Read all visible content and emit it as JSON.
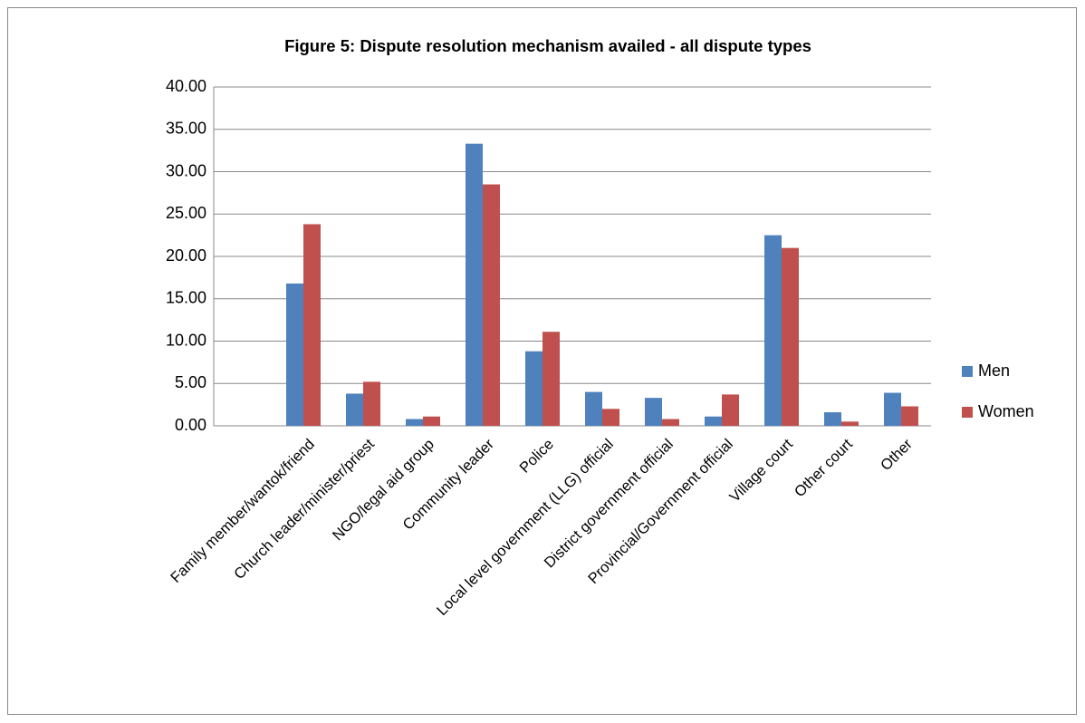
{
  "chart_data": {
    "type": "bar",
    "title": "Figure 5: Dispute resolution mechanism availed - all dispute types",
    "categories": [
      null,
      "Family member/wantok/friend",
      "Church leader/minister/priest",
      "NGO/legal aid group",
      "Community leader",
      "Police",
      "Local level government (LLG) official",
      "District government official",
      "Provincial/Government official",
      "Village court",
      "Other court",
      "Other"
    ],
    "series": [
      {
        "name": "Men",
        "color": "#4f81bd",
        "values": [
          null,
          16.8,
          3.8,
          0.8,
          33.3,
          8.8,
          4.0,
          3.3,
          1.1,
          22.5,
          1.6,
          3.9
        ]
      },
      {
        "name": "Women",
        "color": "#c0504d",
        "values": [
          null,
          23.8,
          5.2,
          1.1,
          28.5,
          11.1,
          2.0,
          0.8,
          3.7,
          21.0,
          0.5,
          2.3
        ]
      }
    ],
    "ylim": [
      0,
      40
    ],
    "yticks": [
      {
        "value": 0,
        "label": "0.00"
      },
      {
        "value": 5,
        "label": "5.00"
      },
      {
        "value": 10,
        "label": "10.00"
      },
      {
        "value": 15,
        "label": "15.00"
      },
      {
        "value": 20,
        "label": "20.00"
      },
      {
        "value": 25,
        "label": "25.00"
      },
      {
        "value": 30,
        "label": "30.00"
      },
      {
        "value": 35,
        "label": "35.00"
      },
      {
        "value": 40,
        "label": "40.00"
      }
    ],
    "grid": true,
    "legend": "right"
  }
}
